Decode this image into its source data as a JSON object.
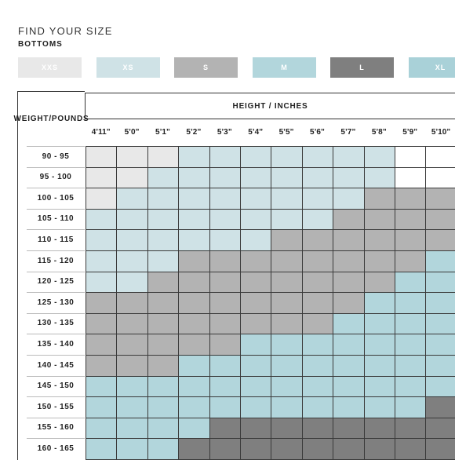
{
  "header": {
    "title": "FIND YOUR SIZE",
    "subtitle": "BOTTOMS"
  },
  "legend": [
    {
      "label": "XXS",
      "color": "#e8e8e8"
    },
    {
      "label": "XS",
      "color": "#cfe2e6"
    },
    {
      "label": "S",
      "color": "#b3b3b3"
    },
    {
      "label": "M",
      "color": "#b2d6dc"
    },
    {
      "label": "L",
      "color": "#7f7f7f"
    },
    {
      "label": "XL",
      "color": "#a9d1d8"
    }
  ],
  "table": {
    "weight_header": "WEIGHT /POUNDS",
    "height_header": "HEIGHT / INCHES",
    "heights": [
      "4’11”",
      "5’0”",
      "5’1”",
      "5’2”",
      "5’3”",
      "5’4”",
      "5’5”",
      "5’6”",
      "5’7”",
      "5’8”",
      "5’9”",
      "5’10”"
    ],
    "weights": [
      "90 - 95",
      "95 - 100",
      "100 - 105",
      "105 - 110",
      "110 - 115",
      "115 - 120",
      "120 - 125",
      "125 - 130",
      "130 - 135",
      "135 - 140",
      "140 - 145",
      "145 - 150",
      "150 - 155",
      "155 - 160",
      "160 - 165"
    ],
    "size_grid": [
      [
        "XXS",
        "XXS",
        "XXS",
        "XS",
        "XS",
        "XS",
        "XS",
        "XS",
        "XS",
        "XS",
        "none",
        "none"
      ],
      [
        "XXS",
        "XXS",
        "XS",
        "XS",
        "XS",
        "XS",
        "XS",
        "XS",
        "XS",
        "XS",
        "none",
        "none"
      ],
      [
        "XXS",
        "XS",
        "XS",
        "XS",
        "XS",
        "XS",
        "XS",
        "XS",
        "XS",
        "S",
        "S",
        "S"
      ],
      [
        "XS",
        "XS",
        "XS",
        "XS",
        "XS",
        "XS",
        "XS",
        "XS",
        "S",
        "S",
        "S",
        "S"
      ],
      [
        "XS",
        "XS",
        "XS",
        "XS",
        "XS",
        "XS",
        "S",
        "S",
        "S",
        "S",
        "S",
        "S"
      ],
      [
        "XS",
        "XS",
        "XS",
        "S",
        "S",
        "S",
        "S",
        "S",
        "S",
        "S",
        "S",
        "M"
      ],
      [
        "XS",
        "XS",
        "S",
        "S",
        "S",
        "S",
        "S",
        "S",
        "S",
        "S",
        "M",
        "M"
      ],
      [
        "S",
        "S",
        "S",
        "S",
        "S",
        "S",
        "S",
        "S",
        "S",
        "M",
        "M",
        "M"
      ],
      [
        "S",
        "S",
        "S",
        "S",
        "S",
        "S",
        "S",
        "S",
        "M",
        "M",
        "M",
        "M"
      ],
      [
        "S",
        "S",
        "S",
        "S",
        "S",
        "M",
        "M",
        "M",
        "M",
        "M",
        "M",
        "M"
      ],
      [
        "S",
        "S",
        "S",
        "M",
        "M",
        "M",
        "M",
        "M",
        "M",
        "M",
        "M",
        "M"
      ],
      [
        "M",
        "M",
        "M",
        "M",
        "M",
        "M",
        "M",
        "M",
        "M",
        "M",
        "M",
        "M"
      ],
      [
        "M",
        "M",
        "M",
        "M",
        "M",
        "M",
        "M",
        "M",
        "M",
        "M",
        "M",
        "L"
      ],
      [
        "M",
        "M",
        "M",
        "M",
        "L",
        "L",
        "L",
        "L",
        "L",
        "L",
        "L",
        "L"
      ],
      [
        "M",
        "M",
        "M",
        "L",
        "L",
        "L",
        "L",
        "L",
        "L",
        "L",
        "L",
        "L"
      ]
    ]
  },
  "colors": {
    "XXS": "#e8e8e8",
    "XS": "#cfe2e6",
    "S": "#b3b3b3",
    "M": "#b2d6dc",
    "L": "#7f7f7f",
    "XL": "#a9d1d8",
    "none": "#ffffff"
  }
}
